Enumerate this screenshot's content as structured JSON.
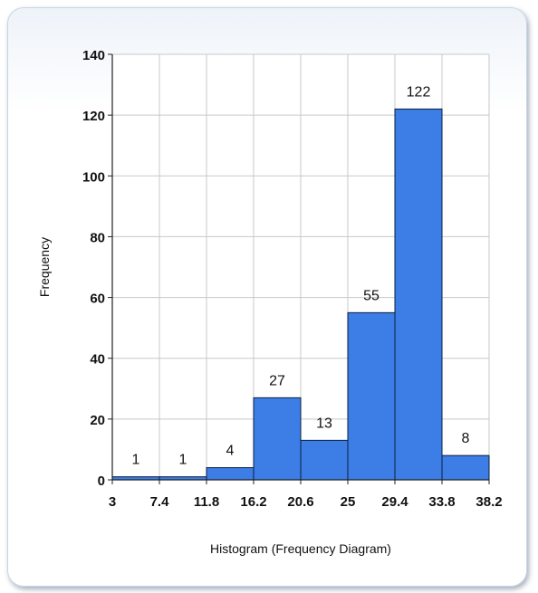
{
  "chart_data": {
    "type": "bar",
    "bin_edges": [
      "3",
      "7.4",
      "11.8",
      "16.2",
      "20.6",
      "25",
      "29.4",
      "33.8",
      "38.2"
    ],
    "values": [
      1,
      1,
      4,
      27,
      13,
      55,
      122,
      8
    ],
    "data_labels": [
      "1",
      "1",
      "4",
      "27",
      "13",
      "55",
      "122",
      "8"
    ],
    "yticks": [
      "0",
      "20",
      "40",
      "60",
      "80",
      "100",
      "120",
      "140"
    ],
    "ylim": [
      0,
      140
    ],
    "xlim": [
      3,
      38.2
    ],
    "xlabel": "Histogram (Frequency Diagram)",
    "ylabel": "Frequency",
    "grid": true,
    "bar_color": "#3c7ee6",
    "bar_stroke": "#0a1e3c"
  }
}
